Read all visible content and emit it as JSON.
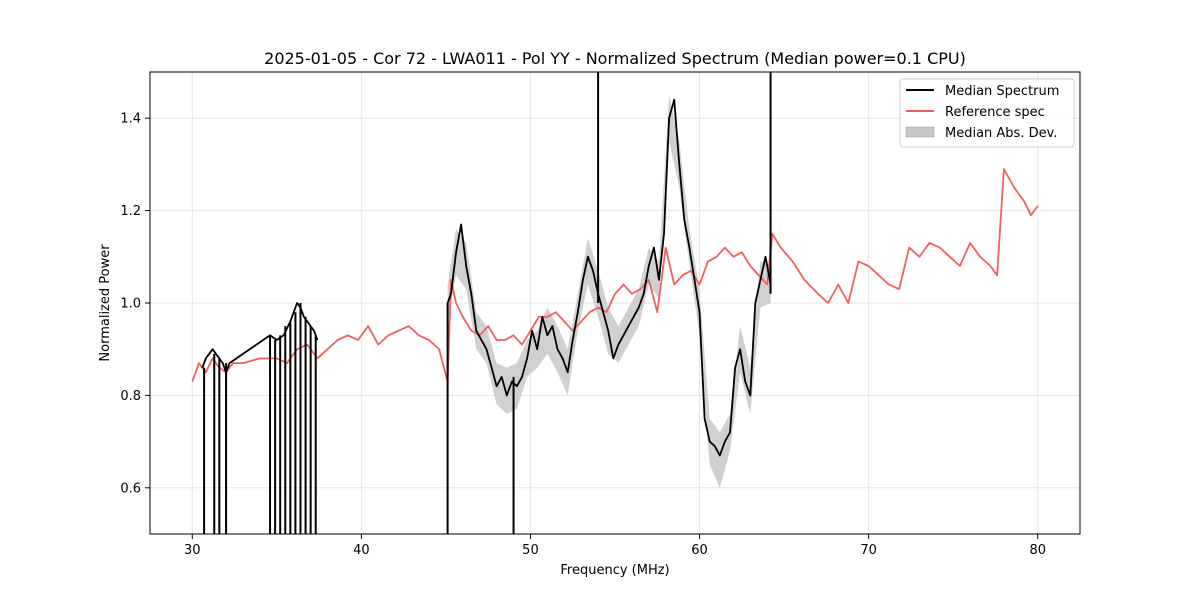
{
  "chart_data": {
    "type": "line",
    "title": "2025-01-05 - Cor 72 - LWA011 - Pol YY - Normalized Spectrum (Median power=0.1 CPU)",
    "xlabel": "Frequency (MHz)",
    "ylabel": "Normalized Power",
    "xlim": [
      27.5,
      82.5
    ],
    "ylim": [
      0.5,
      1.5
    ],
    "xticks": [
      30,
      40,
      50,
      60,
      70,
      80
    ],
    "yticks": [
      0.6,
      0.8,
      1.0,
      1.2,
      1.4
    ],
    "xtick_labels": [
      "30",
      "40",
      "50",
      "60",
      "70",
      "80"
    ],
    "ytick_labels": [
      "0.6",
      "0.8",
      "1.0",
      "1.2",
      "1.4"
    ],
    "grid": true,
    "legend_position": "top-right",
    "colors": {
      "median": "#000000",
      "reference": "#f06060",
      "mad": "#c8c8c8"
    },
    "series": [
      {
        "name": "Median Spectrum",
        "x": [
          30.6,
          30.8,
          31.0,
          31.2,
          31.4,
          31.6,
          31.8,
          32.0,
          32.2,
          34.6,
          35.0,
          35.4,
          35.8,
          36.0,
          36.2,
          36.4,
          36.6,
          36.8,
          37.0,
          37.2,
          37.4,
          45.1,
          45.3,
          45.6,
          45.9,
          46.2,
          46.5,
          46.8,
          47.1,
          47.4,
          47.7,
          48.0,
          48.3,
          48.6,
          48.9,
          49.2,
          49.5,
          49.8,
          50.1,
          50.4,
          50.7,
          51.0,
          51.3,
          51.6,
          51.9,
          52.2,
          52.5,
          52.8,
          53.1,
          53.4,
          53.7,
          54.0,
          54.3,
          54.6,
          54.9,
          55.2,
          55.5,
          55.8,
          56.1,
          56.4,
          56.7,
          57.0,
          57.3,
          57.6,
          57.9,
          58.2,
          58.5,
          58.8,
          59.1,
          59.4,
          59.7,
          60.0,
          60.3,
          60.6,
          60.9,
          61.2,
          61.5,
          61.8,
          62.1,
          62.4,
          62.7,
          63.0,
          63.3,
          63.6,
          63.9,
          64.2
        ],
        "y": [
          0.86,
          0.88,
          0.89,
          0.9,
          0.89,
          0.88,
          0.87,
          0.85,
          0.87,
          0.93,
          0.92,
          0.93,
          0.96,
          0.98,
          1.0,
          0.99,
          0.97,
          0.96,
          0.95,
          0.94,
          0.92,
          1.0,
          1.02,
          1.11,
          1.17,
          1.08,
          1.02,
          0.94,
          0.92,
          0.9,
          0.86,
          0.82,
          0.84,
          0.8,
          0.83,
          0.82,
          0.84,
          0.88,
          0.94,
          0.9,
          0.97,
          0.93,
          0.95,
          0.9,
          0.88,
          0.85,
          0.92,
          0.98,
          1.05,
          1.1,
          1.07,
          1.02,
          0.98,
          0.94,
          0.88,
          0.91,
          0.93,
          0.95,
          0.97,
          0.99,
          1.02,
          1.08,
          1.12,
          1.05,
          1.15,
          1.4,
          1.44,
          1.3,
          1.18,
          1.12,
          1.05,
          0.98,
          0.75,
          0.7,
          0.69,
          0.67,
          0.7,
          0.72,
          0.86,
          0.9,
          0.83,
          0.8,
          1.0,
          1.05,
          1.1,
          1.04
        ]
      },
      {
        "name": "Reference spec",
        "x": [
          30.0,
          30.4,
          30.8,
          31.2,
          31.6,
          32.0,
          32.4,
          33.0,
          34.0,
          35.0,
          35.6,
          36.2,
          36.8,
          37.4,
          38.0,
          38.6,
          39.2,
          39.8,
          40.4,
          41.0,
          41.6,
          42.2,
          42.8,
          43.4,
          44.0,
          44.6,
          45.1,
          45.3,
          45.6,
          46.0,
          46.5,
          47.0,
          47.5,
          48.0,
          48.5,
          49.0,
          49.5,
          50.0,
          50.5,
          51.0,
          51.5,
          52.0,
          52.5,
          53.0,
          53.5,
          54.0,
          54.5,
          55.0,
          55.5,
          56.0,
          56.5,
          57.0,
          57.5,
          58.0,
          58.5,
          59.0,
          59.5,
          60.0,
          60.5,
          61.0,
          61.5,
          62.0,
          62.5,
          63.0,
          63.5,
          64.0,
          64.3,
          64.8,
          65.5,
          66.2,
          67.0,
          67.6,
          68.2,
          68.8,
          69.4,
          70.0,
          70.6,
          71.2,
          71.8,
          72.4,
          73.0,
          73.6,
          74.2,
          74.8,
          75.4,
          76.0,
          76.6,
          77.2,
          77.6,
          78.0,
          78.6,
          79.2,
          79.6,
          80.0
        ],
        "y": [
          0.83,
          0.87,
          0.85,
          0.88,
          0.86,
          0.85,
          0.87,
          0.87,
          0.88,
          0.88,
          0.87,
          0.9,
          0.91,
          0.88,
          0.9,
          0.92,
          0.93,
          0.92,
          0.95,
          0.91,
          0.93,
          0.94,
          0.95,
          0.93,
          0.92,
          0.9,
          0.83,
          1.05,
          1.0,
          0.97,
          0.94,
          0.93,
          0.95,
          0.92,
          0.92,
          0.93,
          0.91,
          0.94,
          0.97,
          0.97,
          0.98,
          0.96,
          0.94,
          0.96,
          0.98,
          0.99,
          0.98,
          1.02,
          1.04,
          1.02,
          1.03,
          1.05,
          0.98,
          1.12,
          1.04,
          1.06,
          1.07,
          1.04,
          1.09,
          1.1,
          1.12,
          1.1,
          1.11,
          1.08,
          1.06,
          1.04,
          1.15,
          1.12,
          1.09,
          1.05,
          1.02,
          1.0,
          1.04,
          1.0,
          1.09,
          1.08,
          1.06,
          1.04,
          1.03,
          1.12,
          1.1,
          1.13,
          1.12,
          1.1,
          1.08,
          1.13,
          1.1,
          1.08,
          1.06,
          1.29,
          1.25,
          1.22,
          1.19,
          1.21
        ]
      },
      {
        "name": "Median Abs. Dev.",
        "x": [
          45.1,
          45.6,
          46.2,
          46.8,
          47.4,
          48.0,
          48.6,
          49.2,
          49.8,
          50.4,
          51.0,
          51.6,
          52.2,
          52.8,
          53.4,
          54.0,
          54.6,
          55.2,
          55.8,
          56.4,
          57.0,
          57.6,
          58.2,
          58.8,
          59.4,
          60.0,
          60.6,
          61.2,
          61.8,
          62.4,
          63.0,
          63.6,
          64.2
        ],
        "lower": [
          0.96,
          1.06,
          1.03,
          0.9,
          0.87,
          0.78,
          0.76,
          0.77,
          0.84,
          0.86,
          0.89,
          0.85,
          0.8,
          0.94,
          1.04,
          0.97,
          0.89,
          0.87,
          0.91,
          0.95,
          1.04,
          1.01,
          1.35,
          1.25,
          1.08,
          0.93,
          0.65,
          0.6,
          0.68,
          0.85,
          0.76,
          0.99,
          1.0
        ],
        "upper": [
          1.04,
          1.16,
          1.13,
          0.98,
          0.95,
          0.87,
          0.86,
          0.87,
          0.92,
          0.94,
          0.99,
          0.95,
          0.9,
          1.02,
          1.14,
          1.07,
          0.99,
          0.95,
          0.99,
          1.03,
          1.12,
          1.09,
          1.45,
          1.35,
          1.16,
          1.03,
          0.75,
          0.72,
          0.76,
          0.95,
          0.86,
          1.09,
          1.08
        ]
      }
    ],
    "spikes": [
      {
        "x": 30.7,
        "from": 0.5,
        "to": 0.86
      },
      {
        "x": 31.3,
        "from": 0.5,
        "to": 0.89
      },
      {
        "x": 31.6,
        "from": 0.5,
        "to": 0.88
      },
      {
        "x": 32.0,
        "from": 0.5,
        "to": 0.87
      },
      {
        "x": 34.6,
        "from": 0.5,
        "to": 0.93
      },
      {
        "x": 34.9,
        "from": 0.5,
        "to": 0.92
      },
      {
        "x": 35.2,
        "from": 0.5,
        "to": 0.93
      },
      {
        "x": 35.5,
        "from": 0.5,
        "to": 0.95
      },
      {
        "x": 35.8,
        "from": 0.5,
        "to": 0.96
      },
      {
        "x": 36.1,
        "from": 0.5,
        "to": 0.98
      },
      {
        "x": 36.4,
        "from": 0.5,
        "to": 1.0
      },
      {
        "x": 36.7,
        "from": 0.5,
        "to": 0.97
      },
      {
        "x": 37.0,
        "from": 0.5,
        "to": 0.95
      },
      {
        "x": 37.3,
        "from": 0.5,
        "to": 0.93
      },
      {
        "x": 45.1,
        "from": 0.5,
        "to": 1.0
      },
      {
        "x": 49.0,
        "from": 0.5,
        "to": 0.84
      },
      {
        "x": 54.0,
        "from": 1.0,
        "to": 1.5
      },
      {
        "x": 64.2,
        "from": 1.02,
        "to": 1.5
      }
    ]
  }
}
